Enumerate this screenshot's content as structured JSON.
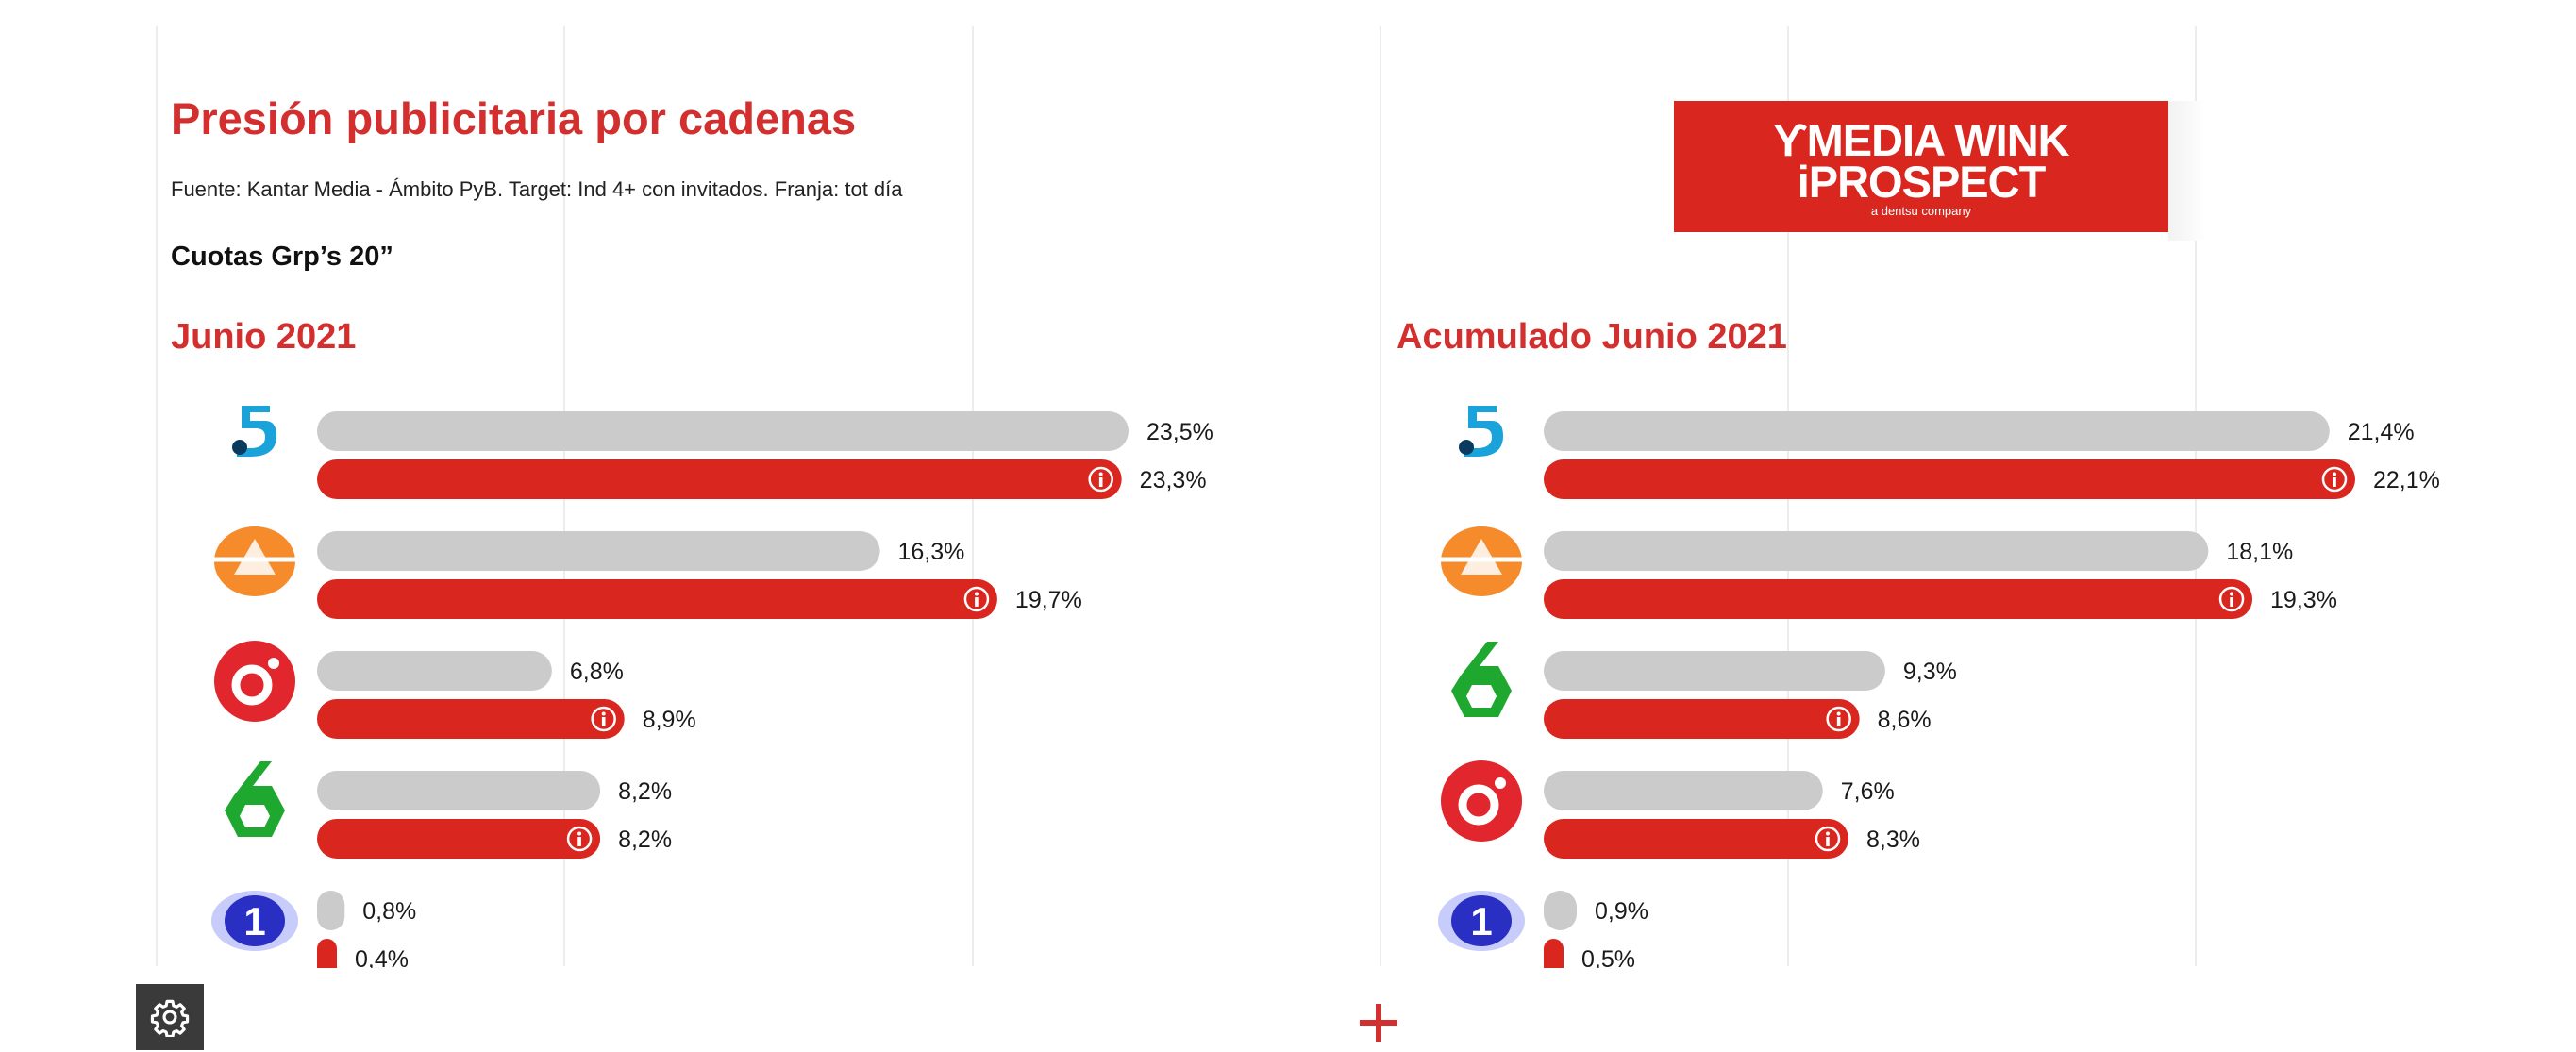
{
  "header": {
    "title": "Presión publicitaria por cadenas",
    "source": "Fuente: Kantar Media - Ámbito PyB. Target: Ind 4+ con invitados. Franja: tot día",
    "metric": "Cuotas Grp’s 20”"
  },
  "logo": {
    "line1": "ϒMEDIA WINK",
    "line2": "iPROSPECT",
    "line3": "a dentsu company"
  },
  "colors": {
    "accent": "#d32f2f",
    "bar_gray": "#cbcbcb",
    "bar_red": "#d9261f"
  },
  "icons": {
    "settings": "gear-icon",
    "add": "plus-icon",
    "info": "info-icon"
  },
  "chart_data": [
    {
      "type": "bar",
      "orientation": "horizontal",
      "title": "Junio 2021",
      "categories": [
        "telecinco",
        "antena3",
        "cuatro",
        "lasexta",
        "la1"
      ],
      "series": [
        {
          "color": "#cbcbcb",
          "values": [
            23.5,
            16.3,
            6.8,
            8.2,
            0.8
          ],
          "labels": [
            "23,5%",
            "16,3%",
            "6,8%",
            "8,2%",
            "0,8%"
          ]
        },
        {
          "color": "#d9261f",
          "values": [
            23.3,
            19.7,
            8.9,
            8.2,
            0.4
          ],
          "labels": [
            "23,3%",
            "19,7%",
            "8,9%",
            "8,2%",
            "0,4%"
          ]
        }
      ],
      "xlim": [
        0,
        23.5
      ],
      "grid": true
    },
    {
      "type": "bar",
      "orientation": "horizontal",
      "title": "Acumulado Junio 2021",
      "categories": [
        "telecinco",
        "antena3",
        "lasexta",
        "cuatro",
        "la1"
      ],
      "series": [
        {
          "color": "#cbcbcb",
          "values": [
            21.4,
            18.1,
            9.3,
            7.6,
            0.9
          ],
          "labels": [
            "21,4%",
            "18,1%",
            "9,3%",
            "7,6%",
            "0,9%"
          ]
        },
        {
          "color": "#d9261f",
          "values": [
            22.1,
            19.3,
            8.6,
            8.3,
            0.5
          ],
          "labels": [
            "22,1%",
            "19,3%",
            "8,6%",
            "8,3%",
            "0,5%"
          ]
        }
      ],
      "xlim": [
        0,
        22.1
      ],
      "grid": true
    }
  ]
}
